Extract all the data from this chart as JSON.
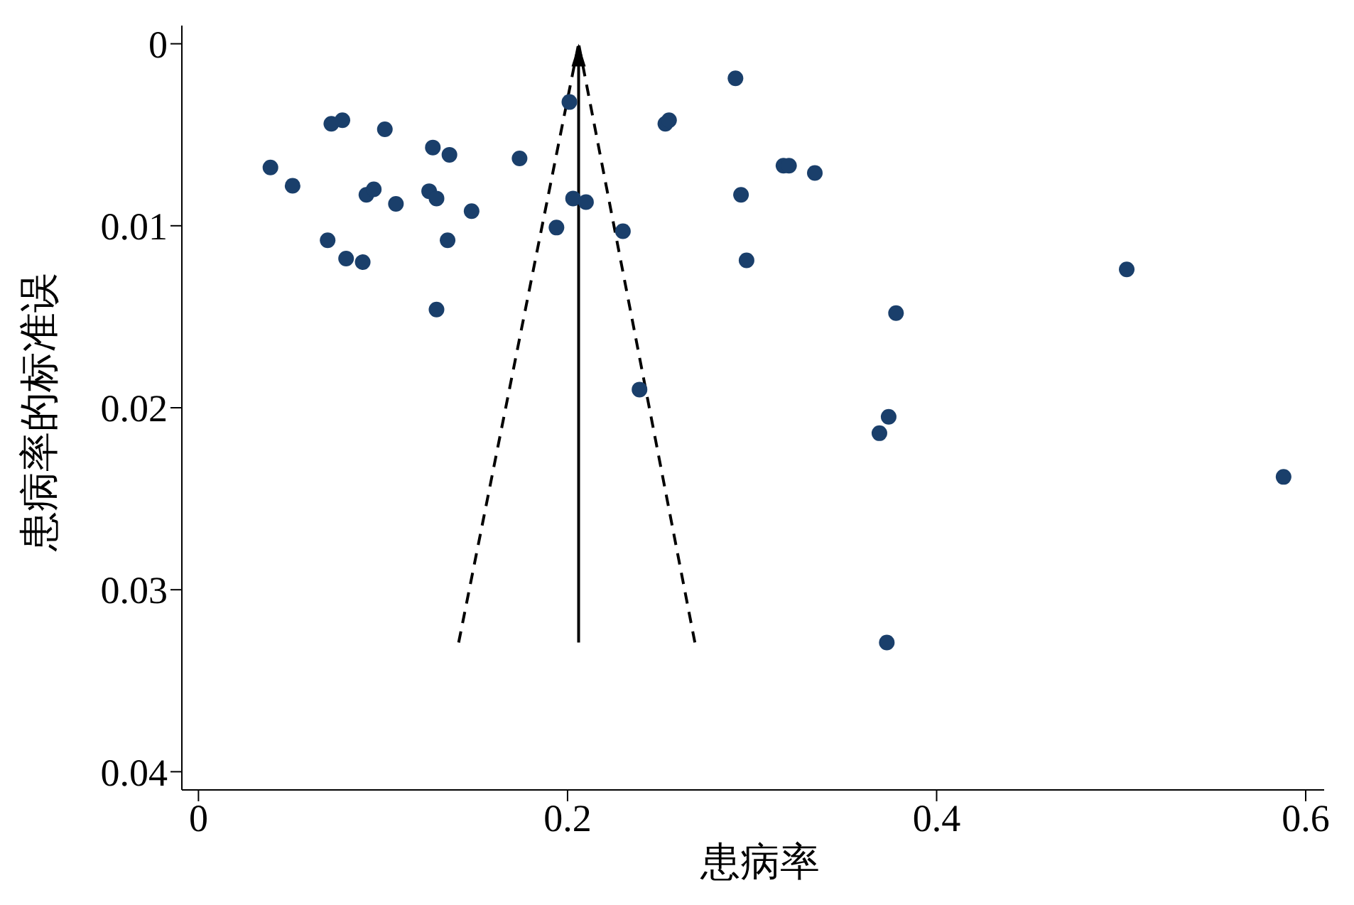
{
  "chart_data": {
    "type": "scatter",
    "xlabel": "患病率",
    "ylabel": "患病率的标准误",
    "xlim": [
      -0.009,
      0.61
    ],
    "xticks": [
      0,
      0.2,
      0.4,
      0.6
    ],
    "ylim": [
      0.041,
      -0.001
    ],
    "yticks": [
      0,
      0.01,
      0.02,
      0.03,
      0.04
    ],
    "grid": false,
    "legend": false,
    "series": [
      {
        "marker": "circle",
        "color": "#1a3f6b",
        "x": [
          0.039,
          0.051,
          0.072,
          0.078,
          0.101,
          0.07,
          0.08,
          0.089,
          0.091,
          0.095,
          0.107,
          0.127,
          0.136,
          0.125,
          0.129,
          0.135,
          0.129,
          0.148,
          0.174,
          0.201,
          0.194,
          0.203,
          0.21,
          0.23,
          0.239,
          0.253,
          0.255,
          0.291,
          0.294,
          0.297,
          0.317,
          0.32,
          0.334,
          0.378,
          0.374,
          0.369,
          0.373,
          0.503,
          0.588
        ],
        "values": [
          0.0068,
          0.0078,
          0.0044,
          0.0042,
          0.0047,
          0.0108,
          0.0118,
          0.012,
          0.0083,
          0.008,
          0.0088,
          0.0057,
          0.0061,
          0.0081,
          0.0085,
          0.0108,
          0.0146,
          0.0092,
          0.0063,
          0.0032,
          0.0101,
          0.0085,
          0.0087,
          0.0103,
          0.019,
          0.0044,
          0.0042,
          0.0019,
          0.0083,
          0.0119,
          0.0067,
          0.0067,
          0.0071,
          0.0148,
          0.0205,
          0.0214,
          0.0329,
          0.0124,
          0.0238
        ]
      },
      {
        "type": "line",
        "marker": "none",
        "line_style": "dashed",
        "color": "#000000",
        "x": [
          0.141,
          0.206
        ],
        "values": [
          0.0329,
          0
        ]
      },
      {
        "type": "line",
        "marker": "none",
        "line_style": "dashed",
        "color": "#000000",
        "x": [
          0.269,
          0.206
        ],
        "values": [
          0.0329,
          0
        ]
      }
    ]
  }
}
